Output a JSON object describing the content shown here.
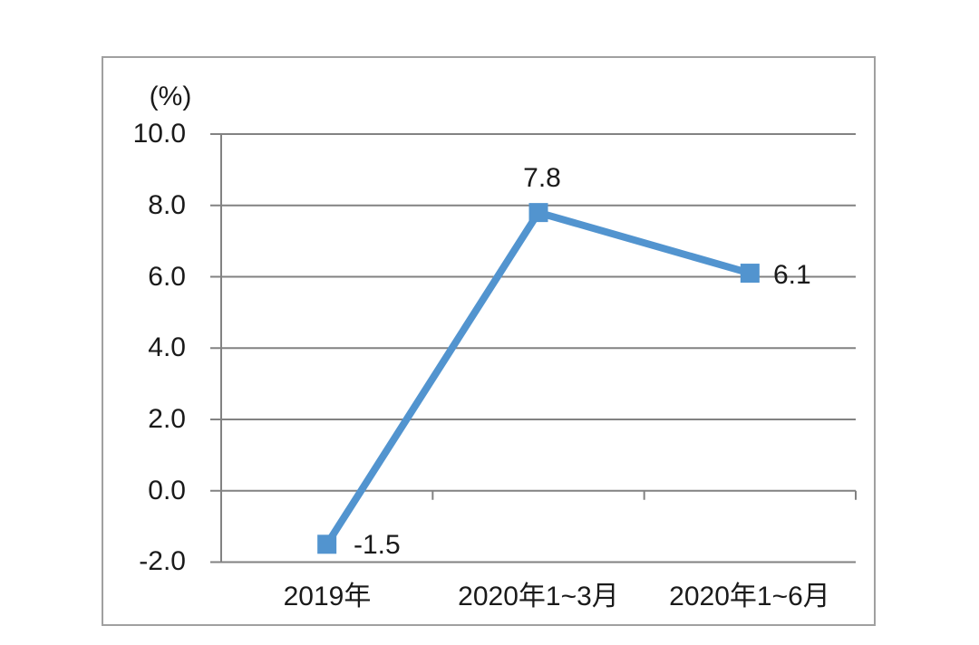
{
  "chart_data": {
    "type": "line",
    "unit_label": "(%)",
    "categories": [
      "2019年",
      "2020年1~3月",
      "2020年1~6月"
    ],
    "values": [
      -1.5,
      7.8,
      6.1
    ],
    "point_labels": [
      "-1.5",
      "7.8",
      "6.1"
    ],
    "point_label_positions": [
      "right",
      "above",
      "right"
    ],
    "ytick_labels": [
      "10.0",
      "8.0",
      "6.0",
      "4.0",
      "2.0",
      "0.0",
      "-2.0"
    ],
    "ylim": [
      -2,
      10
    ],
    "ytick_step": 2,
    "grid": true,
    "legend_position": "none",
    "marker_shape": "square",
    "colors": {
      "line": "#5294CF",
      "marker": "#5294CF",
      "gridline": "#828282",
      "frame_border": "#a0a0a0",
      "text": "#1a1a1a",
      "background": "#ffffff"
    }
  }
}
